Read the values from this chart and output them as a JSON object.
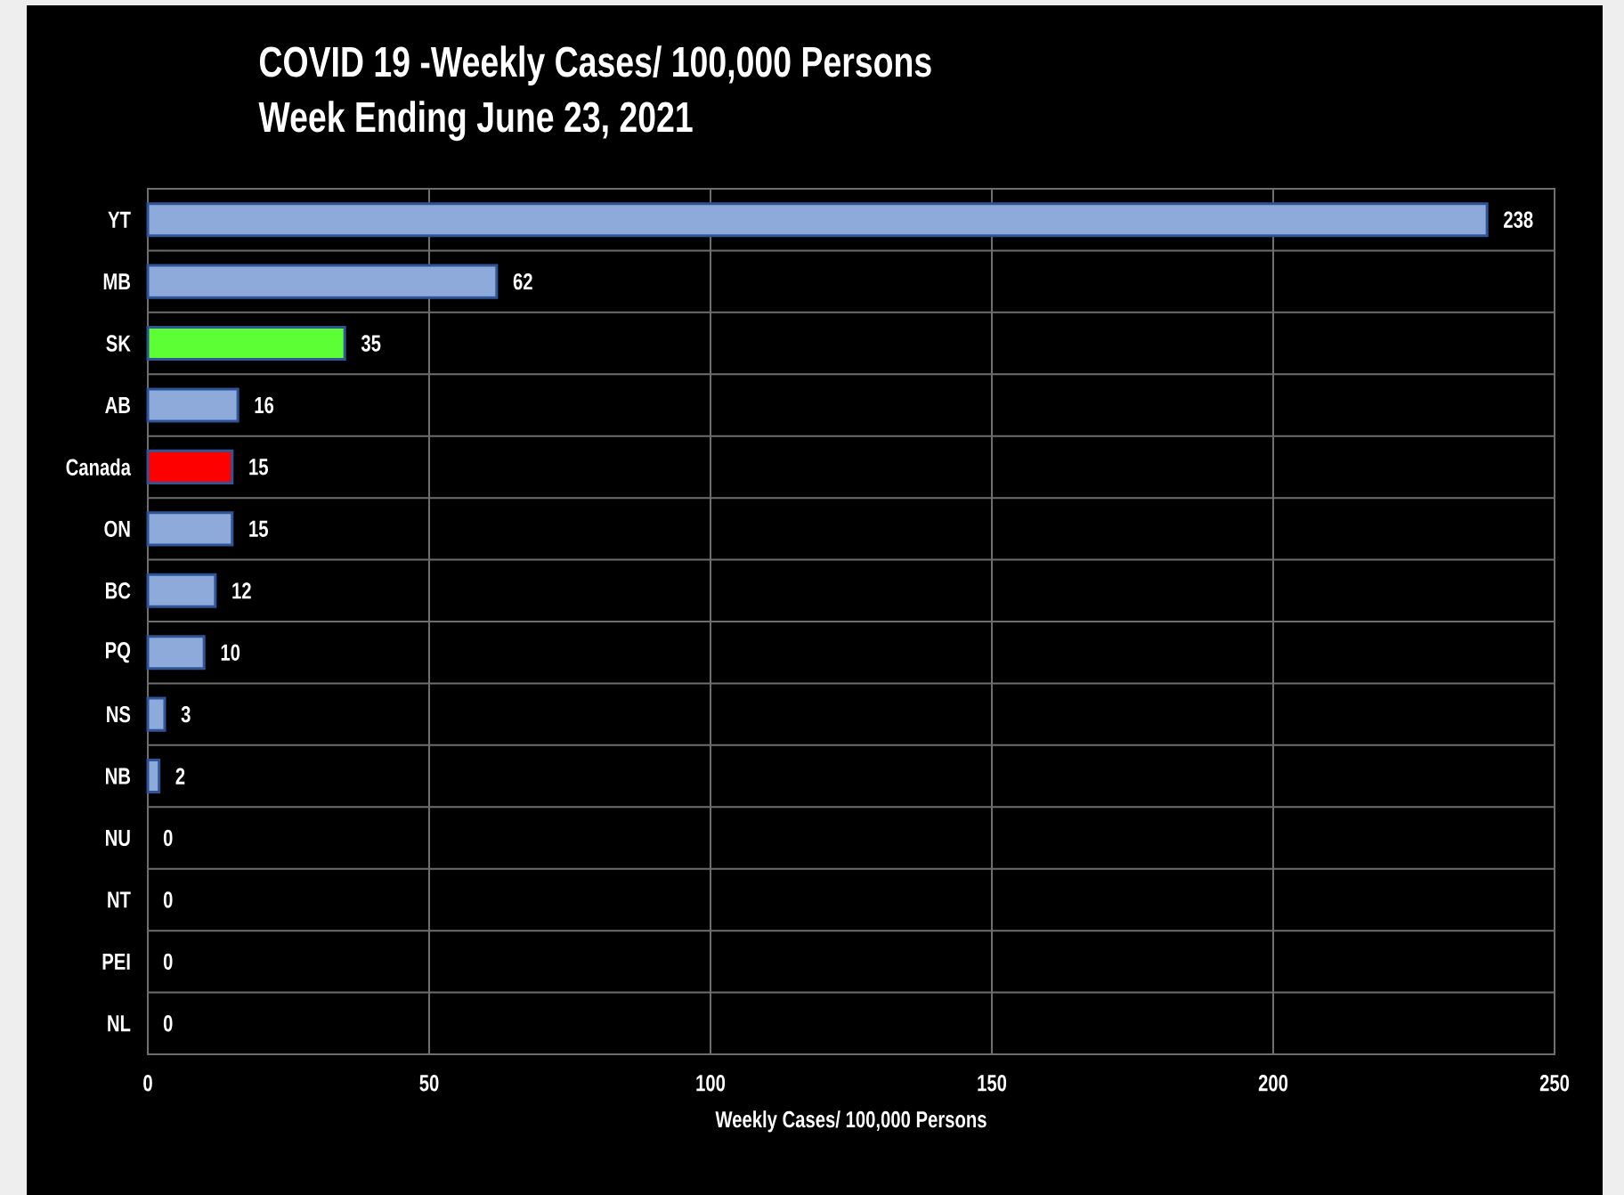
{
  "chart_data": {
    "type": "bar",
    "orientation": "horizontal",
    "title": "COVID 19 -Weekly Cases/ 100,000 Persons",
    "subtitle": "Week Ending June 23, 2021",
    "xlabel": "Weekly Cases/ 100,000 Persons",
    "categories": [
      "YT",
      "MB",
      "SK",
      "AB",
      "Canada",
      "ON",
      "BC",
      "PQ",
      "NS",
      "NB",
      "NU",
      "NT",
      "PEI",
      "NL"
    ],
    "values": [
      238,
      62,
      35,
      16,
      15,
      15,
      12,
      10,
      3,
      2,
      0,
      0,
      0,
      0
    ],
    "colors": [
      "#8eaadb",
      "#8eaadb",
      "#5cff33",
      "#8eaadb",
      "#ff0000",
      "#8eaadb",
      "#8eaadb",
      "#8eaadb",
      "#8eaadb",
      "#8eaadb",
      "#8eaadb",
      "#8eaadb",
      "#8eaadb",
      "#8eaadb"
    ],
    "xlim": [
      0,
      250
    ],
    "xticks": [
      0,
      50,
      100,
      150,
      200,
      250
    ],
    "grid": true,
    "data_labels": true
  }
}
